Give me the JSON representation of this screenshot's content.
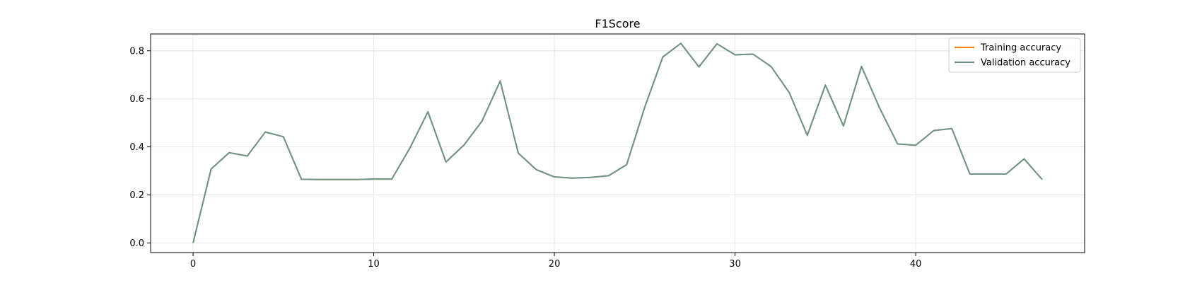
{
  "chart_data": {
    "type": "line",
    "title": "F1Score",
    "xlabel": "",
    "ylabel": "",
    "xlim": [
      -2.35,
      49.35
    ],
    "ylim": [
      -0.04,
      0.87
    ],
    "xticks": [
      0,
      10,
      20,
      30,
      40
    ],
    "yticks": [
      0.0,
      0.2,
      0.4,
      0.6,
      0.8
    ],
    "ytick_labels": [
      "0.0",
      "0.2",
      "0.4",
      "0.6",
      "0.8"
    ],
    "grid": true,
    "legend_position": "top-right",
    "x": [
      0,
      1,
      2,
      3,
      4,
      5,
      6,
      7,
      8,
      9,
      10,
      11,
      12,
      13,
      14,
      15,
      16,
      17,
      18,
      19,
      20,
      21,
      22,
      23,
      24,
      25,
      26,
      27,
      28,
      29,
      30,
      31,
      32,
      33,
      34,
      35,
      36,
      37,
      38,
      39,
      40,
      41,
      42,
      43,
      44,
      45,
      46,
      47
    ],
    "series": [
      {
        "name": "Training accuracy",
        "color": "#ff7f0e",
        "values": [
          0.0,
          0.308,
          0.376,
          0.362,
          0.462,
          0.442,
          0.265,
          0.264,
          0.264,
          0.264,
          0.266,
          0.266,
          0.395,
          0.546,
          0.337,
          0.408,
          0.508,
          0.674,
          0.374,
          0.305,
          0.275,
          0.27,
          0.273,
          0.28,
          0.326,
          0.565,
          0.774,
          0.831,
          0.733,
          0.829,
          0.783,
          0.786,
          0.734,
          0.626,
          0.448,
          0.657,
          0.487,
          0.735,
          0.562,
          0.412,
          0.407,
          0.468,
          0.476,
          0.287,
          0.287,
          0.287,
          0.35,
          0.264
        ]
      },
      {
        "name": "Validation accuracy",
        "color": "#6b958b",
        "values": [
          0.0,
          0.308,
          0.376,
          0.362,
          0.462,
          0.442,
          0.265,
          0.264,
          0.264,
          0.264,
          0.266,
          0.266,
          0.395,
          0.546,
          0.337,
          0.408,
          0.508,
          0.674,
          0.374,
          0.305,
          0.275,
          0.27,
          0.273,
          0.28,
          0.326,
          0.565,
          0.774,
          0.831,
          0.733,
          0.829,
          0.783,
          0.786,
          0.734,
          0.626,
          0.448,
          0.657,
          0.487,
          0.735,
          0.562,
          0.412,
          0.407,
          0.468,
          0.476,
          0.287,
          0.287,
          0.287,
          0.35,
          0.264
        ]
      }
    ]
  }
}
